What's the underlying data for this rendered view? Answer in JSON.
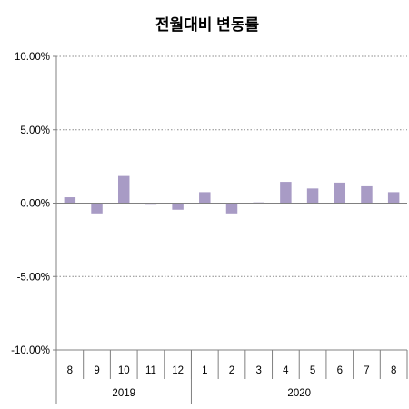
{
  "chart_data": {
    "type": "bar",
    "title": "전월대비 변동률",
    "xlabel": "",
    "ylabel": "",
    "ylim": [
      -10,
      10
    ],
    "yticks": [
      "10.00%",
      "5.00%",
      "0.00%",
      "-5.00%",
      "-10.00%"
    ],
    "ytick_values": [
      10,
      5,
      0,
      -5,
      -10
    ],
    "grid": "horizontal dotted",
    "bar_color": "#a89bc5",
    "categories": [
      "8",
      "9",
      "10",
      "11",
      "12",
      "1",
      "2",
      "3",
      "4",
      "5",
      "6",
      "7",
      "8"
    ],
    "values": [
      0.4,
      -0.7,
      1.85,
      0.0,
      -0.45,
      0.75,
      -0.7,
      0.05,
      1.45,
      1.0,
      1.4,
      1.15,
      0.75
    ],
    "groups": [
      {
        "label": "2019",
        "start": 0,
        "count": 5
      },
      {
        "label": "2020",
        "start": 5,
        "count": 8
      }
    ]
  }
}
